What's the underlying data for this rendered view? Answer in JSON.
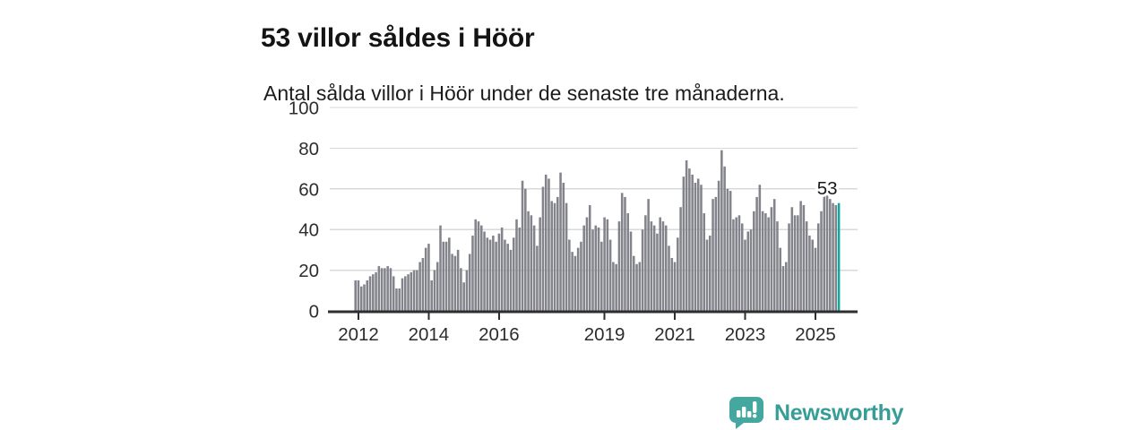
{
  "header": {
    "title": "53 villor såldes i Höör",
    "subtitle": "Antal sålda villor i Höör under de senaste tre månaderna."
  },
  "chart_data": {
    "type": "bar",
    "title": "53 villor såldes i Höör",
    "subtitle": "Antal sålda villor i Höör under de senaste tre månaderna.",
    "x_start_year": 2011,
    "x_start_month": 12,
    "x_end_label": "2025",
    "x_tick_years": [
      2012,
      2014,
      2016,
      2019,
      2021,
      2023,
      2025
    ],
    "x_tick_labels": [
      "2012",
      "2014",
      "2016",
      "2019",
      "2021",
      "2023",
      "2025"
    ],
    "y_ticks": [
      0,
      20,
      40,
      60,
      80,
      100
    ],
    "ylim": [
      0,
      100
    ],
    "grid": "horizontal",
    "legend_position": "none",
    "bar_color": "#83848b",
    "highlight_color": "#0da79e",
    "grid_color": "#d9d9d9",
    "axis_color": "#2e2e2e",
    "label_color": "#2d2d2d",
    "annotation": {
      "label": "53",
      "value": 53,
      "applies_to": "last-bar"
    },
    "series": [
      {
        "name": "Antal sålda villor",
        "values": [
          15,
          15,
          12,
          13,
          15,
          17,
          18,
          19,
          22,
          21,
          21,
          22,
          21,
          17,
          11,
          11,
          16,
          17,
          18,
          19,
          20,
          20,
          24,
          26,
          31,
          33,
          15,
          20,
          24,
          42,
          34,
          34,
          36,
          28,
          27,
          30,
          21,
          14,
          20,
          28,
          37,
          45,
          44,
          42,
          39,
          36,
          35,
          37,
          34,
          38,
          41,
          35,
          33,
          30,
          36,
          45,
          41,
          64,
          60,
          49,
          47,
          42,
          32,
          46,
          61,
          67,
          65,
          54,
          53,
          56,
          68,
          63,
          53,
          35,
          29,
          27,
          31,
          34,
          42,
          46,
          52,
          40,
          42,
          41,
          34,
          46,
          45,
          35,
          24,
          23,
          44,
          58,
          56,
          48,
          39,
          27,
          23,
          24,
          40,
          47,
          55,
          44,
          42,
          38,
          46,
          44,
          42,
          32,
          26,
          24,
          36,
          51,
          66,
          74,
          70,
          67,
          63,
          65,
          62,
          48,
          35,
          37,
          55,
          56,
          64,
          79,
          71,
          60,
          59,
          45,
          46,
          47,
          43,
          35,
          39,
          40,
          49,
          56,
          62,
          49,
          48,
          46,
          51,
          55,
          44,
          31,
          22,
          24,
          43,
          51,
          47,
          47,
          54,
          52,
          44,
          37,
          35,
          31,
          43,
          49,
          57,
          59,
          55,
          53,
          52,
          53
        ]
      }
    ]
  },
  "footer": {
    "brand": "Newsworthy",
    "brand_color": "#369d97",
    "logo_icon": "bar-chart-speech-bubble"
  }
}
